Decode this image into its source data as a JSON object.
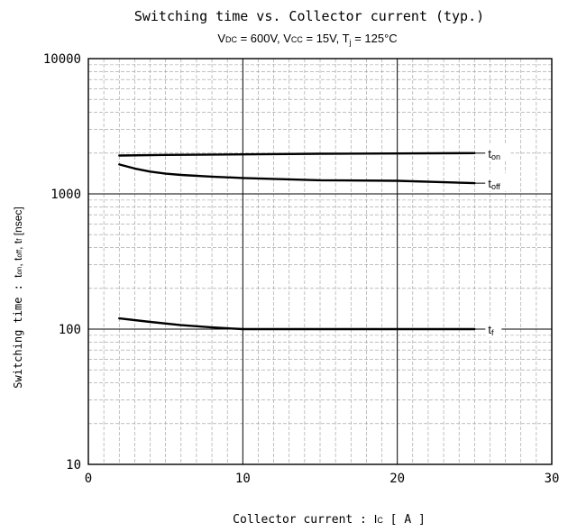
{
  "chart_data": {
    "type": "line",
    "title": "Switching time vs. Collector current (typ.)",
    "subtitle": "VDC = 600V, VCC = 15V, Tj = 125°C",
    "subtitle_parts": {
      "vdc_v": "V",
      "vdc_sub": "DC",
      "vdc_val": " = 600V, ",
      "vcc_v": "V",
      "vcc_sub": "CC",
      "vcc_val": " = 15V, ",
      "tj_t": "T",
      "tj_sub": "j",
      "tj_val": " = 125°C"
    },
    "xlabel": "Collector current :  IC [ A ]",
    "xlabel_parts": {
      "pre": "Collector current : ",
      "i": "I",
      "sub": "C",
      "post": " [ A ]"
    },
    "ylabel": "Switching time : ton, toff, tf [nsec]",
    "ylabel_parts": {
      "pre": "Switching time : ",
      "t1": "t",
      "s1": "on",
      "sep1": ", ",
      "t2": "t",
      "s2": "off",
      "sep2": ", ",
      "t3": "t",
      "s3": "f",
      "post": " [nsec]"
    },
    "xlim": [
      0,
      30
    ],
    "ylim": [
      10,
      10000
    ],
    "yscale": "log",
    "grid": true,
    "xticks": [
      "0",
      "10",
      "20",
      "30"
    ],
    "yticks": [
      "10",
      "100",
      "1000",
      "10000"
    ],
    "series": [
      {
        "name": "ton",
        "label_main": "t",
        "label_sub": "on",
        "x": [
          2,
          5,
          10,
          15,
          20,
          25
        ],
        "y": [
          1920,
          1940,
          1960,
          1980,
          1990,
          2000
        ]
      },
      {
        "name": "toff",
        "label_main": "t",
        "label_sub": "off",
        "x": [
          2,
          3,
          4,
          5,
          6,
          8,
          10,
          12,
          15,
          20,
          25
        ],
        "y": [
          1650,
          1540,
          1460,
          1410,
          1380,
          1340,
          1310,
          1290,
          1260,
          1250,
          1200
        ]
      },
      {
        "name": "tf",
        "label_main": "t",
        "label_sub": "f",
        "x": [
          2,
          4,
          6,
          8,
          10,
          15,
          20,
          25
        ],
        "y": [
          120,
          113,
          107,
          103,
          100,
          100,
          100,
          100
        ]
      }
    ]
  }
}
